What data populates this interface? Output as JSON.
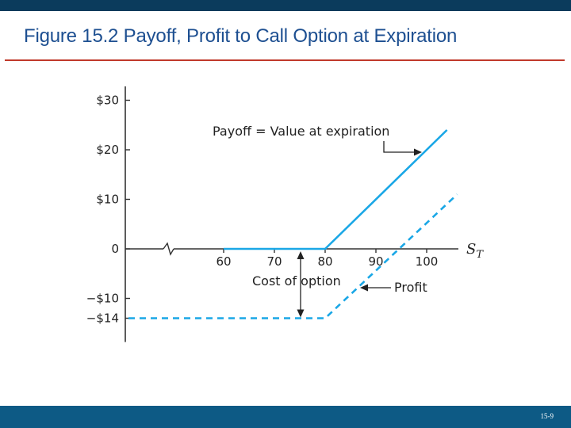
{
  "slide": {
    "title": "Figure 15.2 Payoff, Profit to Call Option at Expiration",
    "slide_number": "15-9",
    "colors": {
      "top_bar": "#0b3b5c",
      "title": "#1d4f91",
      "rule": "#c0392b",
      "bottom_bar": "#0d5a85"
    }
  },
  "chart_data": {
    "type": "line",
    "title": "",
    "xlabel": "S",
    "xlabel_subscript": "T",
    "ylabel": "",
    "x_ticks": [
      60,
      70,
      80,
      90,
      100
    ],
    "x_tick_labels": [
      "60",
      "70",
      "80",
      "90",
      "100"
    ],
    "y_ticks": [
      30,
      20,
      10,
      0,
      -10,
      -14
    ],
    "y_tick_labels": [
      "$30",
      "$20",
      "$10",
      "0",
      "−$10",
      "−$14"
    ],
    "xlim": [
      40,
      110
    ],
    "ylim": [
      -18,
      32
    ],
    "axis_break": "x-axis break between 0 and 60",
    "grid": false,
    "legend": "none",
    "series": [
      {
        "name": "Payoff",
        "style": "solid",
        "color": "#1aa7e6",
        "x": [
          60,
          80,
          104
        ],
        "y": [
          0,
          0,
          24
        ]
      },
      {
        "name": "Profit",
        "style": "dashed",
        "color": "#1aa7e6",
        "x": [
          40,
          80,
          106
        ],
        "y": [
          -14,
          -14,
          11
        ]
      }
    ],
    "annotations": {
      "payoff": "Payoff = Value at expiration",
      "cost": "Cost of option",
      "profit": "Profit"
    }
  }
}
